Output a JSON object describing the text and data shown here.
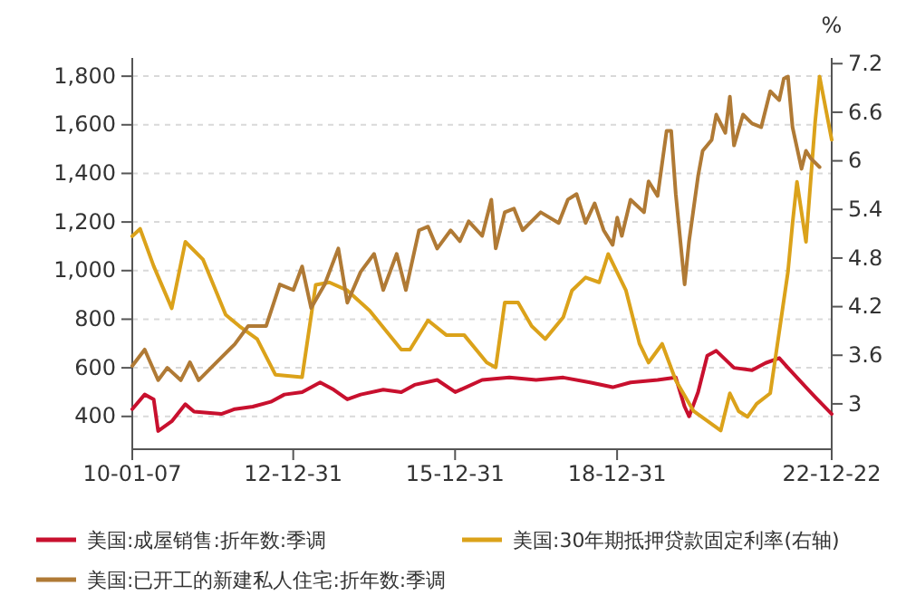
{
  "chart_data": {
    "type": "line",
    "y2label": "%",
    "legend": "bottom",
    "grid": "y",
    "xlim": [
      "2010-01-07",
      "2022-12-22"
    ],
    "xticks": [
      {
        "value": "2010-01-07",
        "label": "10-01-07"
      },
      {
        "value": "2012-12-31",
        "label": "12-12-31"
      },
      {
        "value": "2015-12-31",
        "label": "15-12-31"
      },
      {
        "value": "2018-12-31",
        "label": "18-12-31"
      },
      {
        "value": "2022-12-22",
        "label": "22-12-22"
      }
    ],
    "ylim": [
      265,
      1875
    ],
    "yticks": [
      {
        "value": 400,
        "label": "400"
      },
      {
        "value": 600,
        "label": "600"
      },
      {
        "value": 800,
        "label": "800"
      },
      {
        "value": 1000,
        "label": "1,000"
      },
      {
        "value": 1200,
        "label": "1,200"
      },
      {
        "value": 1400,
        "label": "1,400"
      },
      {
        "value": 1600,
        "label": "1,600"
      },
      {
        "value": 1800,
        "label": "1,800"
      }
    ],
    "y2lim": [
      2.44,
      7.27
    ],
    "y2ticks": [
      3,
      3.6,
      4.2,
      4.8,
      5.4,
      6,
      6.6,
      7.2
    ],
    "series": [
      {
        "name": "美国:成屋销售:折年数:季调",
        "color": "#c8102e",
        "x": [
          "2010-01-07",
          "2010-04",
          "2010-06",
          "2010-07",
          "2010-10",
          "2011-01",
          "2011-03",
          "2011-09",
          "2011-12",
          "2012-04",
          "2012-08",
          "2012-11",
          "2013-03",
          "2013-07",
          "2013-10",
          "2014-01",
          "2014-04",
          "2014-09",
          "2015-01",
          "2015-04",
          "2015-09",
          "2016-01",
          "2016-07",
          "2017-01",
          "2017-07",
          "2018-01",
          "2018-07",
          "2018-12",
          "2019-04",
          "2019-10",
          "2020-02",
          "2020-04",
          "2020-05",
          "2020-07",
          "2020-09",
          "2020-11",
          "2021-03",
          "2021-07",
          "2021-10",
          "2022-01",
          "2022-03",
          "2022-07",
          "2022-09",
          "2022-12-22"
        ],
        "values": [
          430,
          490,
          470,
          340,
          380,
          450,
          420,
          410,
          430,
          440,
          460,
          490,
          500,
          540,
          510,
          470,
          490,
          510,
          500,
          530,
          550,
          500,
          550,
          560,
          550,
          560,
          540,
          520,
          540,
          550,
          560,
          440,
          400,
          500,
          650,
          670,
          600,
          590,
          620,
          640,
          600,
          520,
          480,
          410
        ]
      },
      {
        "name": "美国:30年期抵押贷款固定利率(右轴)",
        "color": "#dba21a",
        "axis": "y2",
        "x": [
          "2010-01-07",
          "2010-03",
          "2010-06",
          "2010-10",
          "2011-01",
          "2011-05",
          "2011-10",
          "2012-01",
          "2012-05",
          "2012-09",
          "2013-03",
          "2013-06",
          "2013-09",
          "2014-01",
          "2014-06",
          "2015-01",
          "2015-03",
          "2015-07",
          "2015-11",
          "2016-03",
          "2016-08",
          "2016-10",
          "2016-12",
          "2017-03",
          "2017-06",
          "2017-09",
          "2018-01",
          "2018-03",
          "2018-06",
          "2018-09",
          "2018-11",
          "2019-03",
          "2019-06",
          "2019-08",
          "2019-11",
          "2020-02",
          "2020-06",
          "2020-12",
          "2021-02",
          "2021-04",
          "2021-06",
          "2021-08",
          "2021-11",
          "2022-01",
          "2022-03",
          "2022-04",
          "2022-05",
          "2022-07",
          "2022-09",
          "2022-10",
          "2022-12-22"
        ],
        "values": [
          5.07,
          5.16,
          4.7,
          4.18,
          5.0,
          4.78,
          4.1,
          3.96,
          3.8,
          3.36,
          3.33,
          4.47,
          4.5,
          4.4,
          4.15,
          3.67,
          3.67,
          4.03,
          3.85,
          3.85,
          3.51,
          3.45,
          4.25,
          4.25,
          3.96,
          3.8,
          4.07,
          4.4,
          4.56,
          4.5,
          4.85,
          4.4,
          3.74,
          3.51,
          3.74,
          3.29,
          2.91,
          2.67,
          3.13,
          2.91,
          2.84,
          3.0,
          3.13,
          3.89,
          4.63,
          5.23,
          5.74,
          5.0,
          6.48,
          7.04,
          6.26
        ]
      },
      {
        "name": "美国:已开工的新建私人住宅:折年数:季调",
        "color": "#b07a35",
        "x": [
          "2010-01-07",
          "2010-04",
          "2010-07",
          "2010-09",
          "2010-12",
          "2011-02",
          "2011-04",
          "2011-08",
          "2011-12",
          "2012-03",
          "2012-07",
          "2012-10",
          "2013-01",
          "2013-03",
          "2013-05",
          "2013-08",
          "2013-11",
          "2014-01",
          "2014-04",
          "2014-07",
          "2014-09",
          "2014-12",
          "2015-02",
          "2015-05",
          "2015-07",
          "2015-09",
          "2015-12",
          "2016-02",
          "2016-04",
          "2016-07",
          "2016-09",
          "2016-10",
          "2016-12",
          "2017-02",
          "2017-04",
          "2017-08",
          "2017-12",
          "2018-02",
          "2018-04",
          "2018-06",
          "2018-08",
          "2018-10",
          "2018-12",
          "2019-01",
          "2019-02",
          "2019-04",
          "2019-07",
          "2019-08",
          "2019-10",
          "2019-12",
          "2020-01",
          "2020-02",
          "2020-04",
          "2020-05",
          "2020-07",
          "2020-08",
          "2020-10",
          "2020-11",
          "2021-01",
          "2021-02",
          "2021-03",
          "2021-05",
          "2021-07",
          "2021-09",
          "2021-11",
          "2022-01",
          "2022-02",
          "2022-03",
          "2022-04",
          "2022-06",
          "2022-07",
          "2022-08",
          "2022-10"
        ],
        "values": [
          608,
          675,
          549,
          600,
          549,
          623,
          549,
          623,
          697,
          772,
          772,
          943,
          920,
          1017,
          846,
          943,
          1091,
          868,
          995,
          1069,
          920,
          1069,
          920,
          1166,
          1181,
          1091,
          1166,
          1121,
          1203,
          1143,
          1292,
          1091,
          1240,
          1255,
          1166,
          1240,
          1196,
          1292,
          1315,
          1196,
          1277,
          1166,
          1106,
          1218,
          1143,
          1292,
          1240,
          1367,
          1307,
          1575,
          1575,
          1315,
          943,
          1121,
          1389,
          1493,
          1538,
          1642,
          1567,
          1716,
          1515,
          1642,
          1605,
          1590,
          1738,
          1701,
          1790,
          1798,
          1590,
          1419,
          1493,
          1463,
          1426
        ]
      }
    ]
  }
}
